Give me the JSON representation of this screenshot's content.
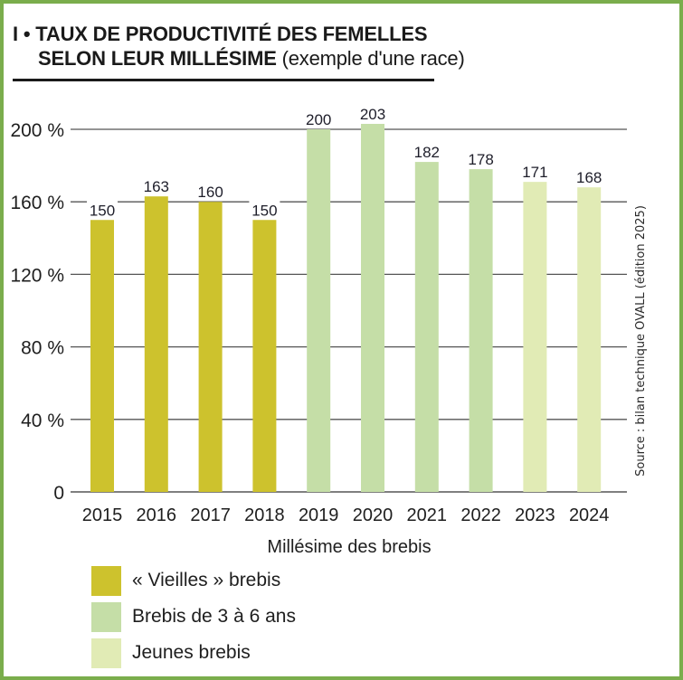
{
  "header": {
    "number": "I",
    "bullet": "•",
    "title_line1": "TAUX DE PRODUCTIVITÉ DES FEMELLES",
    "title_line2": "SELON LEUR MILLÉSIME",
    "title_suffix": "(exemple d'une race)"
  },
  "chart_data": {
    "type": "bar",
    "title": "TAUX DE PRODUCTIVITÉ DES FEMELLES SELON LEUR MILLÉSIME (exemple d'une race)",
    "xlabel": "Millésime des brebis",
    "ylabel": "",
    "categories": [
      "2015",
      "2016",
      "2017",
      "2018",
      "2019",
      "2020",
      "2021",
      "2022",
      "2023",
      "2024"
    ],
    "values": [
      150,
      163,
      160,
      150,
      200,
      203,
      182,
      178,
      171,
      168
    ],
    "groups": [
      "old",
      "old",
      "old",
      "old",
      "mid",
      "mid",
      "mid",
      "mid",
      "young",
      "young"
    ],
    "ylim": [
      0,
      200
    ],
    "yticks": [
      0,
      40,
      80,
      120,
      160,
      200
    ],
    "ytick_labels": [
      "0",
      "40 %",
      "80 %",
      "120 %",
      "160 %",
      "200 %"
    ],
    "grid": true,
    "legend_position": "bottom-left",
    "legend": [
      {
        "key": "old",
        "label": "« Vieilles » brebis",
        "color": "#cdc22d"
      },
      {
        "key": "mid",
        "label": "Brebis de 3 à 6 ans",
        "color": "#c5dea7"
      },
      {
        "key": "young",
        "label": "Jeunes brebis",
        "color": "#e1ebb5"
      }
    ],
    "source": "Source : bilan technique OVALL (édition 2025)"
  },
  "colors": {
    "frame": "#7aad4c",
    "grid": "#555555"
  }
}
